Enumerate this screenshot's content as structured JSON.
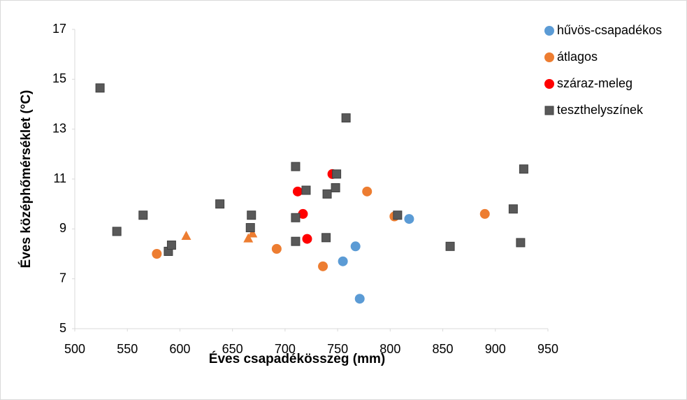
{
  "chart_data": {
    "type": "scatter",
    "xlabel": "Éves csapadékösszeg (mm)",
    "ylabel": "Éves középhőmérséklet (°C)",
    "xlim": [
      500,
      950
    ],
    "xticks": [
      500,
      550,
      600,
      650,
      700,
      750,
      800,
      850,
      900,
      950
    ],
    "ylim": [
      5,
      17
    ],
    "yticks": [
      5,
      7,
      9,
      11,
      13,
      15,
      17
    ],
    "grid": false,
    "legend": "right",
    "series": [
      {
        "name": "hűvös-csapadékos",
        "color": "#5b9bd5",
        "marker": "circle",
        "x": [
          818,
          767,
          755,
          771
        ],
        "values": [
          9.4,
          8.3,
          7.7,
          6.2
        ]
      },
      {
        "name": "átlagos",
        "color": "#ed7d31",
        "marker": "circle",
        "x": [
          578,
          692,
          736,
          778,
          804,
          890
        ],
        "values": [
          8.0,
          8.2,
          7.5,
          10.5,
          9.5,
          9.6
        ]
      },
      {
        "color": "#ed7d31",
        "marker": "triangle",
        "x": [
          606,
          665,
          669
        ],
        "values": [
          8.7,
          8.6,
          8.8
        ]
      },
      {
        "name": "száraz-meleg",
        "color": "#ff0000",
        "marker": "circle",
        "x": [
          712,
          717,
          721,
          745
        ],
        "values": [
          10.5,
          9.6,
          8.6,
          11.2
        ]
      },
      {
        "name": "teszthelyszínek",
        "color": "#595959",
        "marker": "square",
        "x": [
          524,
          540,
          565,
          589,
          592,
          638,
          668,
          667,
          710,
          710,
          710,
          720,
          740,
          748,
          749,
          739,
          758,
          807,
          857,
          917,
          924,
          927
        ],
        "values": [
          14.65,
          8.9,
          9.55,
          8.1,
          8.35,
          10.0,
          9.55,
          9.05,
          11.5,
          9.45,
          8.5,
          10.55,
          10.4,
          10.65,
          11.2,
          8.65,
          13.45,
          9.55,
          8.3,
          9.8,
          8.45,
          11.4
        ]
      }
    ]
  }
}
